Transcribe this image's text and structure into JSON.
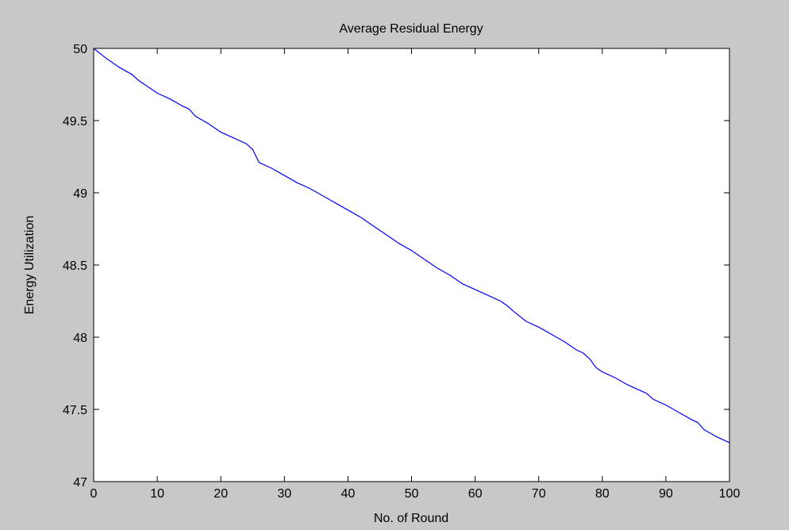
{
  "chart_data": {
    "type": "line",
    "title": "Average Residual Energy",
    "xlabel": "No. of Round",
    "ylabel": "Energy Utilization",
    "xlim": [
      0,
      100
    ],
    "ylim": [
      47,
      50
    ],
    "xticks": [
      0,
      10,
      20,
      30,
      40,
      50,
      60,
      70,
      80,
      90,
      100
    ],
    "xtick_labels": [
      "0",
      "10",
      "20",
      "30",
      "40",
      "50",
      "60",
      "70",
      "80",
      "90",
      "100"
    ],
    "yticks": [
      47,
      47.5,
      48,
      48.5,
      49,
      49.5,
      50
    ],
    "ytick_labels": [
      "47",
      "47.5",
      "48",
      "48.5",
      "49",
      "49.5",
      "50"
    ],
    "grid": false,
    "colors": {
      "series": "#0000ff",
      "axes": "#000000",
      "plot_background": "#ffffff",
      "figure_background": "#c8c8c8"
    },
    "series": [
      {
        "x": [
          0,
          2,
          4,
          6,
          7,
          8,
          10,
          12,
          14,
          15,
          16,
          18,
          20,
          21,
          22,
          24,
          25,
          26,
          28,
          30,
          32,
          34,
          36,
          38,
          40,
          42,
          44,
          46,
          48,
          50,
          52,
          54,
          56,
          58,
          60,
          62,
          64,
          65,
          66,
          68,
          70,
          72,
          74,
          76,
          77,
          78,
          79,
          80,
          82,
          84,
          86,
          87,
          88,
          90,
          92,
          94,
          95,
          96,
          98,
          100
        ],
        "y": [
          50.0,
          49.93,
          49.87,
          49.82,
          49.78,
          49.75,
          49.69,
          49.65,
          49.6,
          49.58,
          49.53,
          49.48,
          49.42,
          49.4,
          49.38,
          49.34,
          49.3,
          49.21,
          49.17,
          49.12,
          49.07,
          49.03,
          48.98,
          48.93,
          48.88,
          48.83,
          48.77,
          48.71,
          48.65,
          48.6,
          48.54,
          48.48,
          48.43,
          48.37,
          48.33,
          48.29,
          48.25,
          48.22,
          48.18,
          48.11,
          48.07,
          48.02,
          47.97,
          47.91,
          47.89,
          47.85,
          47.79,
          47.76,
          47.72,
          47.67,
          47.63,
          47.61,
          47.57,
          47.53,
          47.48,
          47.43,
          47.41,
          47.36,
          47.31,
          47.27
        ]
      }
    ]
  }
}
